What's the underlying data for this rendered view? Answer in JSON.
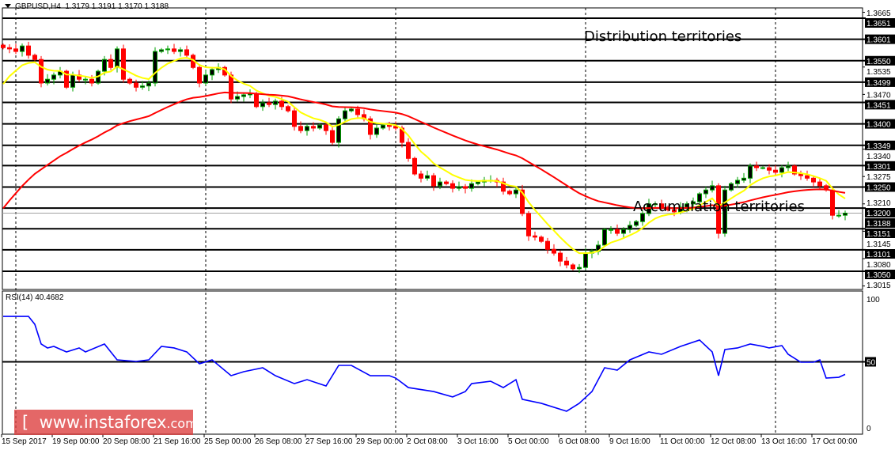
{
  "header": {
    "symbol": "GBPUSD,H4",
    "ohlc": "1.3179 1.3191 1.3170 1.3188",
    "menu_icon": "triangle-down-icon"
  },
  "annotations": {
    "distribution": "Distribution territories",
    "accumulation": "Accumulation territories"
  },
  "watermark": {
    "bracket_open": "[",
    "site": "www.instaforex",
    "tld": ".com",
    "bracket_close": "]"
  },
  "rsi": {
    "label": "RSI(14) 40.4682",
    "axis": [
      "100",
      "50",
      "0"
    ],
    "level": 50
  },
  "colors": {
    "bull_body": "#000000",
    "bull_outline": "#00a000",
    "bear": "#ff0000",
    "ma_fast": "#ffff00",
    "ma_slow": "#ff0000",
    "rsi_line": "#0000ff",
    "level_lines": "#000000",
    "current_price_line": "#a0a0a0"
  },
  "chart_data": {
    "type": "candlestick",
    "timeframe": "H4",
    "current_price": "1.3188",
    "price_range": [
      1.3,
      1.368
    ],
    "levels_major": [
      "1.3651",
      "1.3601",
      "1.3550",
      "1.3499",
      "1.3451",
      "1.3400",
      "1.3349",
      "1.3301",
      "1.3250",
      "1.3200",
      "1.3151",
      "1.3101",
      "1.3050"
    ],
    "levels_minor": [
      "1.3665",
      "1.3535",
      "1.3470",
      "1.3340",
      "1.3275",
      "1.3210",
      "1.3145",
      "1.3080",
      "1.3015"
    ],
    "x_labels": [
      "15 Sep 2017",
      "19 Sep 00:00",
      "20 Sep 08:00",
      "21 Sep 16:00",
      "25 Sep 00:00",
      "26 Sep 08:00",
      "27 Sep 16:00",
      "29 Sep 00:00",
      "2 Oct 08:00",
      "3 Oct 16:00",
      "5 Oct 00:00",
      "6 Oct 08:00",
      "9 Oct 16:00",
      "11 Oct 00:00",
      "12 Oct 08:00",
      "13 Oct 16:00",
      "17 Oct 00:00"
    ],
    "closes": [
      1.3581,
      1.3578,
      1.3572,
      1.3585,
      1.3563,
      1.3553,
      1.3497,
      1.3506,
      1.3516,
      1.3525,
      1.3487,
      1.3516,
      1.3506,
      1.3506,
      1.3497,
      1.3525,
      1.3553,
      1.3534,
      1.3578,
      1.3506,
      1.3497,
      1.3487,
      1.349,
      1.3497,
      1.3572,
      1.3576,
      1.3578,
      1.3572,
      1.3576,
      1.3563,
      1.3534,
      1.3497,
      1.3516,
      1.3529,
      1.3534,
      1.3516,
      1.3459,
      1.3465,
      1.3469,
      1.3472,
      1.3441,
      1.345,
      1.3446,
      1.3454,
      1.3441,
      1.3431,
      1.3394,
      1.3384,
      1.3394,
      1.339,
      1.3397,
      1.3384,
      1.3356,
      1.3412,
      1.3431,
      1.3435,
      1.3422,
      1.3412,
      1.3375,
      1.339,
      1.3397,
      1.3394,
      1.339,
      1.3356,
      1.3318,
      1.3281,
      1.3271,
      1.3277,
      1.3253,
      1.3262,
      1.3258,
      1.3247,
      1.3251,
      1.3247,
      1.3258,
      1.3262,
      1.3266,
      1.3266,
      1.3262,
      1.324,
      1.3234,
      1.3243,
      1.3187,
      1.3134,
      1.3131,
      1.3121,
      1.3102,
      1.3093,
      1.3074,
      1.3065,
      1.3056,
      1.3059,
      1.3093,
      1.3097,
      1.3112,
      1.3149,
      1.3149,
      1.314,
      1.3149,
      1.3159,
      1.3168,
      1.3187,
      1.321,
      1.321,
      1.3202,
      1.3196,
      1.3191,
      1.3202,
      1.321,
      1.3215,
      1.3234,
      1.3243,
      1.3253,
      1.314,
      1.3243,
      1.3258,
      1.3266,
      1.3271,
      1.33,
      1.3296,
      1.3296,
      1.329,
      1.3285,
      1.3296,
      1.33,
      1.3281,
      1.3277,
      1.3271,
      1.3262,
      1.3253,
      1.3243,
      1.3183,
      1.3183,
      1.3188
    ],
    "rsi_points": [
      [
        0,
        84.4
      ],
      [
        4,
        84.4
      ],
      [
        5,
        78.4
      ],
      [
        6,
        63.5
      ],
      [
        7,
        60.5
      ],
      [
        8,
        61.7
      ],
      [
        10,
        57.5
      ],
      [
        12,
        60.5
      ],
      [
        13,
        57.5
      ],
      [
        16,
        63.5
      ],
      [
        18,
        51.5
      ],
      [
        21,
        50.3
      ],
      [
        23,
        51.5
      ],
      [
        25,
        61.7
      ],
      [
        27,
        60.5
      ],
      [
        29,
        57.5
      ],
      [
        31,
        48.5
      ],
      [
        33,
        51.5
      ],
      [
        36,
        39.5
      ],
      [
        38,
        42.5
      ],
      [
        41,
        45.5
      ],
      [
        43,
        39.5
      ],
      [
        46,
        33.5
      ],
      [
        48,
        36.5
      ],
      [
        51,
        31.7
      ],
      [
        53,
        47.3
      ],
      [
        55,
        47.3
      ],
      [
        58,
        39.5
      ],
      [
        61,
        39.5
      ],
      [
        62,
        37.7
      ],
      [
        64,
        30.5
      ],
      [
        68,
        27.5
      ],
      [
        71,
        23.4
      ],
      [
        73,
        27.5
      ],
      [
        74,
        33.5
      ],
      [
        77,
        35.3
      ],
      [
        79,
        30.5
      ],
      [
        81,
        36.5
      ],
      [
        82,
        21.6
      ],
      [
        85,
        18.6
      ],
      [
        89,
        12.6
      ],
      [
        91,
        18.6
      ],
      [
        93,
        27.5
      ],
      [
        95,
        45.5
      ],
      [
        97,
        43.7
      ],
      [
        99,
        51.5
      ],
      [
        102,
        57.5
      ],
      [
        104,
        55.7
      ],
      [
        107,
        61.7
      ],
      [
        110,
        66.5
      ],
      [
        112,
        57.5
      ],
      [
        113,
        39.5
      ],
      [
        114,
        59.3
      ],
      [
        116,
        60.5
      ],
      [
        118,
        63.5
      ],
      [
        120,
        61.7
      ],
      [
        121,
        60.5
      ],
      [
        123,
        62.3
      ],
      [
        124,
        55.7
      ],
      [
        126,
        49.7
      ],
      [
        128,
        49.7
      ],
      [
        129,
        51.5
      ],
      [
        130,
        37.7
      ],
      [
        132,
        38.3
      ],
      [
        133,
        40.5
      ]
    ]
  }
}
